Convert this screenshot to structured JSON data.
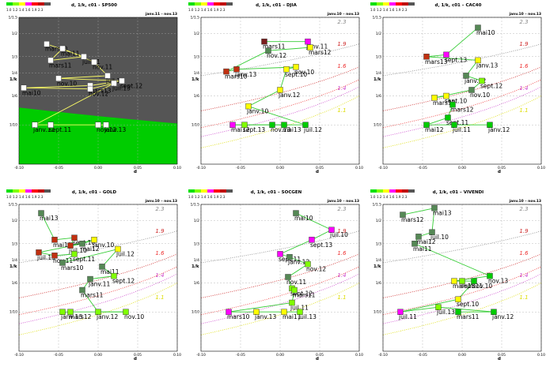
{
  "colors": {
    "scale": [
      "#00e000",
      "#80ff00",
      "#ffff00",
      "#ff00ff",
      "#ff0000",
      "#c00000",
      "#555555"
    ],
    "region_dark": "#555555",
    "line": "#33cc33",
    "marker_edge": "#444444"
  },
  "chart_data": [
    {
      "type": "scatter",
      "variant": "filled",
      "title": "d, 1/k, c01 - SP500",
      "period": "janv.11 - nov.13",
      "xlabel": "d",
      "ylabel": "1/k",
      "xlim": [
        -0.1,
        0.1
      ],
      "ylim_reciprocal": [
        1,
        20
      ],
      "x_ticks": [
        "-0.10",
        "-0.05",
        "0.00",
        "0.05",
        "0.10"
      ],
      "y_ticks": [
        "1/1.5",
        "1/2",
        "1/3",
        "1/4",
        "1/6",
        "1/10"
      ],
      "scale_labels": [
        "1.0",
        "1.2",
        "1.4",
        "1.6",
        "1.9",
        "2.3"
      ],
      "levels": [],
      "marker_color": "#ffffff",
      "points": [
        {
          "label": "mars10",
          "x": -0.065,
          "y": 2.4
        },
        {
          "label": "juil.11",
          "x": -0.018,
          "y": 3.0
        },
        {
          "label": "mars11",
          "x": -0.06,
          "y": 3.2
        },
        {
          "label": "mai11",
          "x": -0.045,
          "y": 2.6
        },
        {
          "label": "nov.11",
          "x": -0.005,
          "y": 3.3
        },
        {
          "label": "juil.12",
          "x": 0.012,
          "y": 4.2
        },
        {
          "label": "nov.10",
          "x": -0.05,
          "y": 4.4
        },
        {
          "label": "sept.12",
          "x": 0.03,
          "y": 4.6
        },
        {
          "label": "mars13",
          "x": -0.01,
          "y": 5.0
        },
        {
          "label": "mai10",
          "x": -0.094,
          "y": 5.2
        },
        {
          "label": "nov.12",
          "x": -0.01,
          "y": 5.3
        },
        {
          "label": "juil.13",
          "x": 0.02,
          "y": 4.8
        },
        {
          "label": "janv.11",
          "x": -0.08,
          "y": 10.0
        },
        {
          "label": "sept.11",
          "x": -0.06,
          "y": 10.0
        },
        {
          "label": "nov.12",
          "x": 0.0,
          "y": 10.0
        },
        {
          "label": "janv.13",
          "x": 0.01,
          "y": 10.0
        }
      ]
    },
    {
      "type": "scatter",
      "variant": "contour",
      "title": "d, 1/k, c01 – DJIA",
      "period": "janv.10 – nov.13",
      "xlabel": "d",
      "ylabel": "1/k",
      "xlim": [
        -0.1,
        0.1
      ],
      "ylim_reciprocal": [
        1,
        20
      ],
      "x_ticks": [
        "-0.10",
        "-0.05",
        "0.00",
        "0.05",
        "0.10"
      ],
      "y_ticks": [
        "1/1.5",
        "1/2",
        "1/3",
        "1/4",
        "1/6",
        "1/10"
      ],
      "scale_labels": [
        "1.0",
        "1.2",
        "1.4",
        "1.6",
        "1.9",
        "2.3"
      ],
      "levels": [
        "2.3",
        "1.9",
        "1.6",
        "1.4",
        "1.1"
      ],
      "points": [
        {
          "label": "mars11",
          "x": -0.02,
          "y": 2.3,
          "color": "#7a1d1d"
        },
        {
          "label": "janv.11",
          "x": 0.035,
          "y": 2.3,
          "color": "#ff00ff"
        },
        {
          "label": "mars12",
          "x": 0.038,
          "y": 2.55,
          "color": "#ffff00"
        },
        {
          "label": "nov.12",
          "x": -0.015,
          "y": 2.7,
          "color": "#558855"
        },
        {
          "label": "mars10",
          "x": -0.068,
          "y": 3.9,
          "color": "#c03010"
        },
        {
          "label": "janv.13",
          "x": -0.055,
          "y": 3.75,
          "color": "#c03010"
        },
        {
          "label": "nov.10",
          "x": 0.02,
          "y": 3.6,
          "color": "#ffff00"
        },
        {
          "label": "sept.10",
          "x": 0.008,
          "y": 3.75,
          "color": "#ffff00"
        },
        {
          "label": "janv.12",
          "x": 0.0,
          "y": 5.4,
          "color": "#ffff00"
        },
        {
          "label": "janv.10",
          "x": -0.04,
          "y": 7.2,
          "color": "#ffff00"
        },
        {
          "label": "juil.12",
          "x": 0.032,
          "y": 10.0,
          "color": "#00cc00"
        },
        {
          "label": "mai12",
          "x": -0.06,
          "y": 10.0,
          "color": "#ff00ff"
        },
        {
          "label": "sept.13",
          "x": -0.045,
          "y": 10.0,
          "color": "#80ff00"
        },
        {
          "label": "nov.13",
          "x": -0.01,
          "y": 10.0,
          "color": "#00cc00"
        },
        {
          "label": "mai13",
          "x": 0.005,
          "y": 10.0,
          "color": "#00cc00"
        }
      ]
    },
    {
      "type": "scatter",
      "variant": "contour",
      "title": "d, 1/k, c01 – CAC40",
      "period": "janv.10 – nov.13",
      "xlabel": "d",
      "ylabel": "1/k",
      "xlim": [
        -0.1,
        0.1
      ],
      "ylim_reciprocal": [
        1,
        20
      ],
      "x_ticks": [
        "-0.10",
        "-0.05",
        "0.00",
        "0.05",
        "0.10"
      ],
      "y_ticks": [
        "1/1.5",
        "1/2",
        "1/3",
        "1/4",
        "1/6",
        "1/10"
      ],
      "scale_labels": [
        "1.0",
        "1.2",
        "1.4",
        "1.6",
        "1.9",
        "2.3"
      ],
      "levels": [
        "2.3",
        "1.9",
        "1.6",
        "1.4",
        "1.1"
      ],
      "points": [
        {
          "label": "mai10",
          "x": 0.02,
          "y": 1.8,
          "color": "#558855"
        },
        {
          "label": "sept.13",
          "x": -0.02,
          "y": 2.9,
          "color": "#ff00ff"
        },
        {
          "label": "mars13",
          "x": -0.045,
          "y": 3.0,
          "color": "#c03010"
        },
        {
          "label": "janv.13",
          "x": 0.02,
          "y": 3.2,
          "color": "#ffff00"
        },
        {
          "label": "janv.12",
          "x": 0.005,
          "y": 4.2,
          "color": "#558855"
        },
        {
          "label": "sept.12",
          "x": 0.025,
          "y": 4.6,
          "color": "#80ff00"
        },
        {
          "label": "nov.10",
          "x": 0.012,
          "y": 5.4,
          "color": "#558855"
        },
        {
          "label": "mars11",
          "x": -0.035,
          "y": 6.2,
          "color": "#ffff00"
        },
        {
          "label": "sept.10",
          "x": -0.02,
          "y": 6.0,
          "color": "#ffff00"
        },
        {
          "label": "mars12",
          "x": -0.012,
          "y": 7.0,
          "color": "#00cc00"
        },
        {
          "label": "sept.11",
          "x": -0.018,
          "y": 8.8,
          "color": "#00cc00"
        },
        {
          "label": "mai12",
          "x": -0.045,
          "y": 10.0,
          "color": "#00cc00"
        },
        {
          "label": "juil.11",
          "x": -0.01,
          "y": 10.0,
          "color": "#00cc00"
        },
        {
          "label": "janv.12",
          "x": 0.035,
          "y": 10.0,
          "color": "#00cc00"
        }
      ]
    },
    {
      "type": "scatter",
      "variant": "contour",
      "title": "d, 1/k, c01 – GOLD",
      "period": "janv.10 – nov.13",
      "xlabel": "d",
      "ylabel": "1/k",
      "xlim": [
        -0.1,
        0.1
      ],
      "ylim_reciprocal": [
        1,
        20
      ],
      "x_ticks": [
        "-0.10",
        "-0.05",
        "0.00",
        "0.05",
        "0.10"
      ],
      "y_ticks": [
        "1/1.5",
        "1/2",
        "1/3",
        "1/4",
        "1/6",
        "1/10"
      ],
      "scale_labels": [
        "1.0",
        "1.2",
        "1.4",
        "1.6",
        "1.9",
        "2.3"
      ],
      "levels": [
        "2.3",
        "1.9",
        "1.6",
        "1.4",
        "1.1"
      ],
      "points": [
        {
          "label": "mai13",
          "x": -0.072,
          "y": 1.75,
          "color": "#558855"
        },
        {
          "label": "mai10",
          "x": -0.055,
          "y": 2.8,
          "color": "#c03010"
        },
        {
          "label": "sept.10",
          "x": -0.03,
          "y": 2.7,
          "color": "#c03010"
        },
        {
          "label": "juil.10",
          "x": -0.035,
          "y": 3.1,
          "color": "#c03010"
        },
        {
          "label": "janv.10",
          "x": -0.005,
          "y": 2.8,
          "color": "#ffff00"
        },
        {
          "label": "mai12",
          "x": -0.02,
          "y": 3.0,
          "color": "#558855"
        },
        {
          "label": "juil.13",
          "x": -0.075,
          "y": 3.5,
          "color": "#c03010"
        },
        {
          "label": "nov.11",
          "x": -0.055,
          "y": 3.7,
          "color": "#c03010"
        },
        {
          "label": "sept.11",
          "x": -0.03,
          "y": 3.6,
          "color": "#80ff00"
        },
        {
          "label": "mars10",
          "x": -0.045,
          "y": 4.2,
          "color": "#558855"
        },
        {
          "label": "juil.12",
          "x": 0.025,
          "y": 3.3,
          "color": "#ffff00"
        },
        {
          "label": "mai11",
          "x": 0.005,
          "y": 4.5,
          "color": "#558855"
        },
        {
          "label": "sept.12",
          "x": 0.02,
          "y": 5.3,
          "color": "#80ff00"
        },
        {
          "label": "janv.11",
          "x": -0.01,
          "y": 5.6,
          "color": "#558855"
        },
        {
          "label": "mars11",
          "x": -0.02,
          "y": 6.8,
          "color": "#558855"
        },
        {
          "label": "janv.12",
          "x": 0.0,
          "y": 10.0,
          "color": "#80ff00"
        },
        {
          "label": "nov.10",
          "x": 0.035,
          "y": 10.0,
          "color": "#80ff00"
        },
        {
          "label": "mars12",
          "x": -0.035,
          "y": 10.0,
          "color": "#80ff00"
        },
        {
          "label": "janv.13",
          "x": -0.045,
          "y": 10.0,
          "color": "#80ff00"
        }
      ]
    },
    {
      "type": "scatter",
      "variant": "contour",
      "title": "d, 1/k, c01 – SOCGEN",
      "period": "janv.10 – nov.13",
      "xlabel": "d",
      "ylabel": "1/k",
      "xlim": [
        -0.1,
        0.1
      ],
      "ylim_reciprocal": [
        1,
        20
      ],
      "x_ticks": [
        "-0.10",
        "-0.05",
        "0.00",
        "0.05",
        "0.10"
      ],
      "y_ticks": [
        "1/1.5",
        "1/2",
        "1/3",
        "1/4",
        "1/6",
        "1/10"
      ],
      "scale_labels": [
        "1.0",
        "1.2",
        "1.4",
        "1.6",
        "1.9",
        "2.3"
      ],
      "levels": [
        "2.3",
        "1.9",
        "1.6",
        "1.4",
        "1.1"
      ],
      "points": [
        {
          "label": "mai10",
          "x": 0.02,
          "y": 1.75,
          "color": "#558855"
        },
        {
          "label": "juil.10",
          "x": 0.065,
          "y": 2.35,
          "color": "#ff00ff"
        },
        {
          "label": "sept.13",
          "x": 0.04,
          "y": 2.8,
          "color": "#ff00ff"
        },
        {
          "label": "sept.11",
          "x": 0.0,
          "y": 3.6,
          "color": "#ff00ff"
        },
        {
          "label": "janv.12",
          "x": 0.012,
          "y": 3.8,
          "color": "#558855"
        },
        {
          "label": "nov.12",
          "x": 0.035,
          "y": 4.3,
          "color": "#80ff00"
        },
        {
          "label": "nov.11",
          "x": 0.01,
          "y": 5.4,
          "color": "#558855"
        },
        {
          "label": "sept.12",
          "x": 0.015,
          "y": 6.6,
          "color": "#80ff00"
        },
        {
          "label": "mars11",
          "x": 0.018,
          "y": 6.8,
          "color": "#80ff00"
        },
        {
          "label": "juil.11",
          "x": 0.015,
          "y": 8.5,
          "color": "#80ff00"
        },
        {
          "label": "mars10",
          "x": -0.065,
          "y": 10.0,
          "color": "#ff00ff"
        },
        {
          "label": "janv.13",
          "x": -0.03,
          "y": 10.0,
          "color": "#ffff00"
        },
        {
          "label": "mai11",
          "x": 0.005,
          "y": 10.0,
          "color": "#ffff00"
        },
        {
          "label": "juil.13",
          "x": 0.025,
          "y": 10.0,
          "color": "#80ff00"
        }
      ]
    },
    {
      "type": "scatter",
      "variant": "contour",
      "title": "d, 1/k, c01 – VIVENDI",
      "period": "janv.10 – nov.13",
      "xlabel": "d",
      "ylabel": "1/k",
      "xlim": [
        -0.1,
        0.1
      ],
      "ylim_reciprocal": [
        1,
        20
      ],
      "x_ticks": [
        "-0.10",
        "-0.05",
        "0.00",
        "0.05",
        "0.10"
      ],
      "y_ticks": [
        "1/1.5",
        "1/2",
        "1/3",
        "1/4",
        "1/6",
        "1/10"
      ],
      "scale_labels": [
        "1.0",
        "1.2",
        "1.4",
        "1.6",
        "1.9",
        "2.3"
      ],
      "levels": [
        "2.3",
        "1.9",
        "1.6",
        "1.4",
        "1.1"
      ],
      "points": [
        {
          "label": "mars12",
          "x": -0.075,
          "y": 1.8,
          "color": "#558855"
        },
        {
          "label": "mai13",
          "x": -0.035,
          "y": 1.6,
          "color": "#558855"
        },
        {
          "label": "juil.10",
          "x": -0.038,
          "y": 2.45,
          "color": "#558855"
        },
        {
          "label": "mai12",
          "x": -0.055,
          "y": 2.65,
          "color": "#558855"
        },
        {
          "label": "mai11",
          "x": -0.06,
          "y": 3.0,
          "color": "#558855"
        },
        {
          "label": "nov.13",
          "x": 0.035,
          "y": 5.3,
          "color": "#00cc00"
        },
        {
          "label": "mars13",
          "x": -0.01,
          "y": 5.8,
          "color": "#ffff00"
        },
        {
          "label": "sept.11",
          "x": 0.0,
          "y": 5.8,
          "color": "#80ff00"
        },
        {
          "label": "nov.10",
          "x": 0.015,
          "y": 5.8,
          "color": "#00cc00"
        },
        {
          "label": "sept.10",
          "x": -0.005,
          "y": 8.0,
          "color": "#ffff00"
        },
        {
          "label": "juil.11",
          "x": -0.078,
          "y": 10.0,
          "color": "#ff00ff"
        },
        {
          "label": "juil.13",
          "x": -0.03,
          "y": 9.2,
          "color": "#80ff00"
        },
        {
          "label": "janv.12",
          "x": 0.04,
          "y": 10.0,
          "color": "#00cc00"
        },
        {
          "label": "mars11",
          "x": -0.005,
          "y": 10.0,
          "color": "#00cc00"
        }
      ]
    }
  ]
}
